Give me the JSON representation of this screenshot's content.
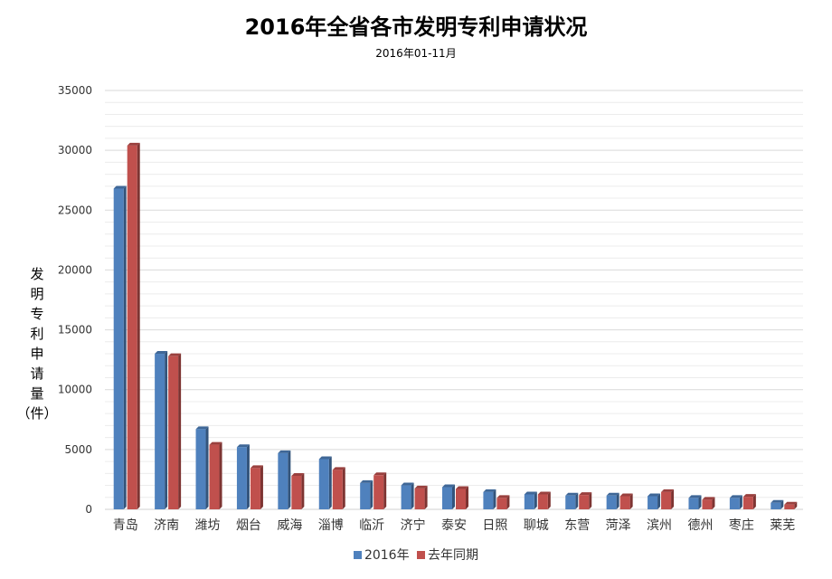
{
  "chart_data": {
    "type": "bar",
    "title": "2016年全省各市发明专利申请状况",
    "subtitle": "2016年01-11月",
    "ylabel_chars": [
      "发",
      "明",
      "专",
      "利",
      "申",
      "请",
      "量",
      "（件）"
    ],
    "ylim": [
      0,
      35000
    ],
    "yticks": [
      0,
      5000,
      10000,
      15000,
      20000,
      25000,
      30000,
      35000
    ],
    "grid": true,
    "legend_position": "bottom",
    "categories": [
      "青岛",
      "济南",
      "潍坊",
      "烟台",
      "威海",
      "淄博",
      "临沂",
      "济宁",
      "泰安",
      "日照",
      "聊城",
      "东营",
      "菏泽",
      "滨州",
      "德州",
      "枣庄",
      "莱芜"
    ],
    "series": [
      {
        "name": "2016年",
        "color": "#4f81bd",
        "values": [
          26800,
          13000,
          6700,
          5200,
          4700,
          4200,
          2200,
          2000,
          1850,
          1450,
          1250,
          1150,
          1150,
          1100,
          950,
          950,
          550
        ]
      },
      {
        "name": "去年同期",
        "color": "#c0504d",
        "values": [
          30400,
          12800,
          5400,
          3450,
          2800,
          3300,
          2850,
          1750,
          1700,
          950,
          1250,
          1200,
          1100,
          1450,
          800,
          1050,
          400
        ]
      }
    ]
  }
}
